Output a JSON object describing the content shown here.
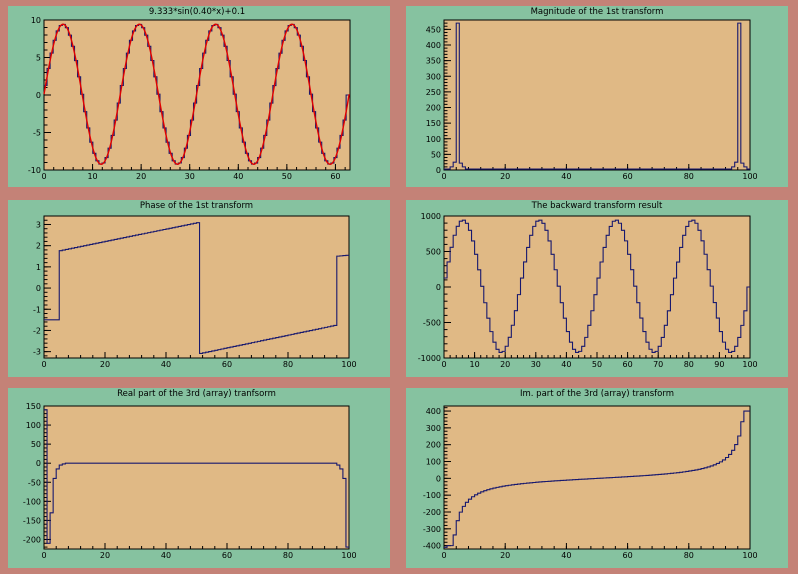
{
  "canvas": {
    "background": "#c48277",
    "pad_color": "#86c2a0",
    "plot_bg": "#e0b985",
    "line_color": "#17186e",
    "fit_color": "#e00000"
  },
  "chart_data": [
    {
      "id": "sine",
      "type": "line",
      "title": "9.333*sin(0.40*x)+0.1",
      "xlim": [
        0,
        63
      ],
      "ylim": [
        -10,
        10
      ],
      "xticks": [
        0,
        10,
        20,
        30,
        40,
        50,
        60
      ],
      "yticks": [
        -10,
        -5,
        0,
        5,
        10
      ],
      "series": [
        {
          "style": "hist",
          "bins": 100,
          "xrange": [
            0,
            62.83
          ],
          "func": {
            "kind": "sine",
            "amp": 9.333,
            "freq": 0.4,
            "offset": 0.1
          },
          "last_bin": 0
        },
        {
          "style": "fit",
          "func": {
            "kind": "sine",
            "amp": 9.333,
            "freq": 0.4,
            "offset": 0.1
          },
          "xrange": [
            0,
            62.83
          ]
        }
      ]
    },
    {
      "id": "magnitude",
      "type": "line",
      "title": "Magnitude of the 1st transform",
      "xlim": [
        0,
        100
      ],
      "ylim": [
        0,
        480
      ],
      "xticks": [
        0,
        20,
        40,
        60,
        80,
        100
      ],
      "yticks": [
        0,
        50,
        100,
        150,
        200,
        250,
        300,
        350,
        400,
        450
      ],
      "series": [
        {
          "style": "hist",
          "bins": 100,
          "xrange": [
            0,
            100
          ],
          "func": {
            "kind": "peak",
            "peak_bins": [
              4,
              96
            ],
            "peak": 470,
            "near": [
              [
                3,
                25
              ],
              [
                5,
                22
              ],
              [
                2,
                10
              ],
              [
                6,
                10
              ],
              [
                95,
                25
              ],
              [
                97,
                22
              ],
              [
                98,
                10
              ],
              [
                94,
                10
              ]
            ],
            "base": 3
          }
        }
      ]
    },
    {
      "id": "phase",
      "type": "line",
      "title": "Phase of the 1st transform",
      "xlim": [
        0,
        100
      ],
      "ylim": [
        -3.3,
        3.4
      ],
      "xticks": [
        0,
        20,
        40,
        60,
        80,
        100
      ],
      "yticks": [
        -3,
        -2,
        -1,
        0,
        1,
        2,
        3
      ],
      "series": [
        {
          "style": "hist",
          "bins": 100,
          "xrange": [
            0,
            100
          ],
          "func": {
            "kind": "piecewise",
            "segments": [
              [
                0,
                5,
                -1.5,
                -1.5
              ],
              [
                5,
                51,
                1.75,
                3.1
              ],
              [
                51,
                96,
                -3.1,
                -1.75
              ],
              [
                96,
                100,
                1.5,
                1.55
              ]
            ]
          }
        }
      ]
    },
    {
      "id": "backward",
      "type": "line",
      "title": "The backward transform result",
      "xlim": [
        0,
        100
      ],
      "ylim": [
        -1000,
        1000
      ],
      "xticks": [
        0,
        10,
        20,
        30,
        40,
        50,
        60,
        70,
        80,
        90,
        100
      ],
      "yticks": [
        -1000,
        -500,
        0,
        500,
        1000
      ],
      "series": [
        {
          "style": "hist",
          "bins": 100,
          "xrange": [
            0,
            100
          ],
          "func": {
            "kind": "sine",
            "amp": 933,
            "freq": 0.2513,
            "offset": 10
          },
          "last_bin": 0
        }
      ]
    },
    {
      "id": "real3",
      "type": "line",
      "title": "Real part of the 3rd (array) tranfsorm",
      "xlim": [
        0,
        100
      ],
      "ylim": [
        -225,
        150
      ],
      "xticks": [
        0,
        20,
        40,
        60,
        80,
        100
      ],
      "yticks": [
        -200,
        -150,
        -100,
        -50,
        0,
        50,
        100,
        150
      ],
      "series": [
        {
          "style": "hist",
          "bins": 100,
          "xrange": [
            0,
            100
          ],
          "func": {
            "kind": "list",
            "head": [
              140,
              -210,
              -130,
              -40,
              -15,
              -5,
              -2
            ],
            "tail": [
              -5,
              -15,
              -40,
              -220
            ],
            "body": 0
          }
        }
      ]
    },
    {
      "id": "imag3",
      "type": "line",
      "title": "Im. part of the 3rd (array) transform",
      "xlim": [
        0,
        100
      ],
      "ylim": [
        -420,
        430
      ],
      "xticks": [
        0,
        20,
        40,
        60,
        80,
        100
      ],
      "yticks": [
        -400,
        -300,
        -200,
        -100,
        0,
        100,
        200,
        300,
        400
      ],
      "series": [
        {
          "style": "hist",
          "bins": 100,
          "xrange": [
            0,
            100
          ],
          "func": {
            "kind": "cot",
            "scale": 31.8,
            "first": -410,
            "last": 400
          }
        }
      ]
    }
  ]
}
